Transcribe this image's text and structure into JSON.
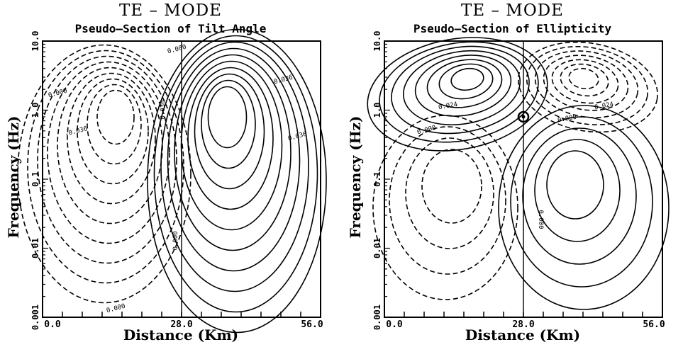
{
  "chart_data": [
    {
      "type": "contour",
      "title": "TE – MODE",
      "subtitle": "Pseudo–Section of Tilt Angle",
      "xlabel": "Distance  (Km)",
      "ylabel": "Frequency  (Hz)",
      "xlim": [
        0.0,
        56.0
      ],
      "ylim": [
        0.001,
        10.0
      ],
      "yscale": "log",
      "x_tick_labels": [
        "0.0",
        "28.0",
        "56.0"
      ],
      "y_tick_labels": [
        "0.001",
        "0.01",
        "0.1",
        "1.0",
        "10.0"
      ],
      "contour_labels": [
        "0.000",
        "-0.036",
        "0.036",
        "0.036",
        "0.036",
        "0.000",
        "0.000",
        "0.000"
      ],
      "negative_centers": [
        {
          "x": 15.0,
          "y": 1.0
        }
      ],
      "positive_centers": [
        {
          "x": 37.0,
          "y": 1.0
        }
      ]
    },
    {
      "type": "contour",
      "title": "TE – MODE",
      "subtitle": "Pseudo–Section of Ellipticity",
      "xlabel": "Distance  (Km)",
      "ylabel": "Frequency  (Hz)",
      "xlim": [
        0.0,
        56.0
      ],
      "ylim": [
        0.001,
        10.0
      ],
      "yscale": "log",
      "x_tick_labels": [
        "0.0",
        "28.0",
        "56.0"
      ],
      "y_tick_labels": [
        "0.001",
        "0.01",
        "0.1",
        "1.0",
        "10.0"
      ],
      "contour_labels": [
        "0.024",
        "0.024",
        "0.000",
        "0.000",
        "0.000"
      ],
      "positive_centers": [
        {
          "x": 17.0,
          "y": 3.0
        },
        {
          "x": 38.0,
          "y": 0.1
        }
      ],
      "negative_centers": [
        {
          "x": 40.0,
          "y": 3.0
        },
        {
          "x": 14.0,
          "y": 0.1
        }
      ],
      "marker": {
        "x": 28.0,
        "y": 0.8
      }
    }
  ]
}
